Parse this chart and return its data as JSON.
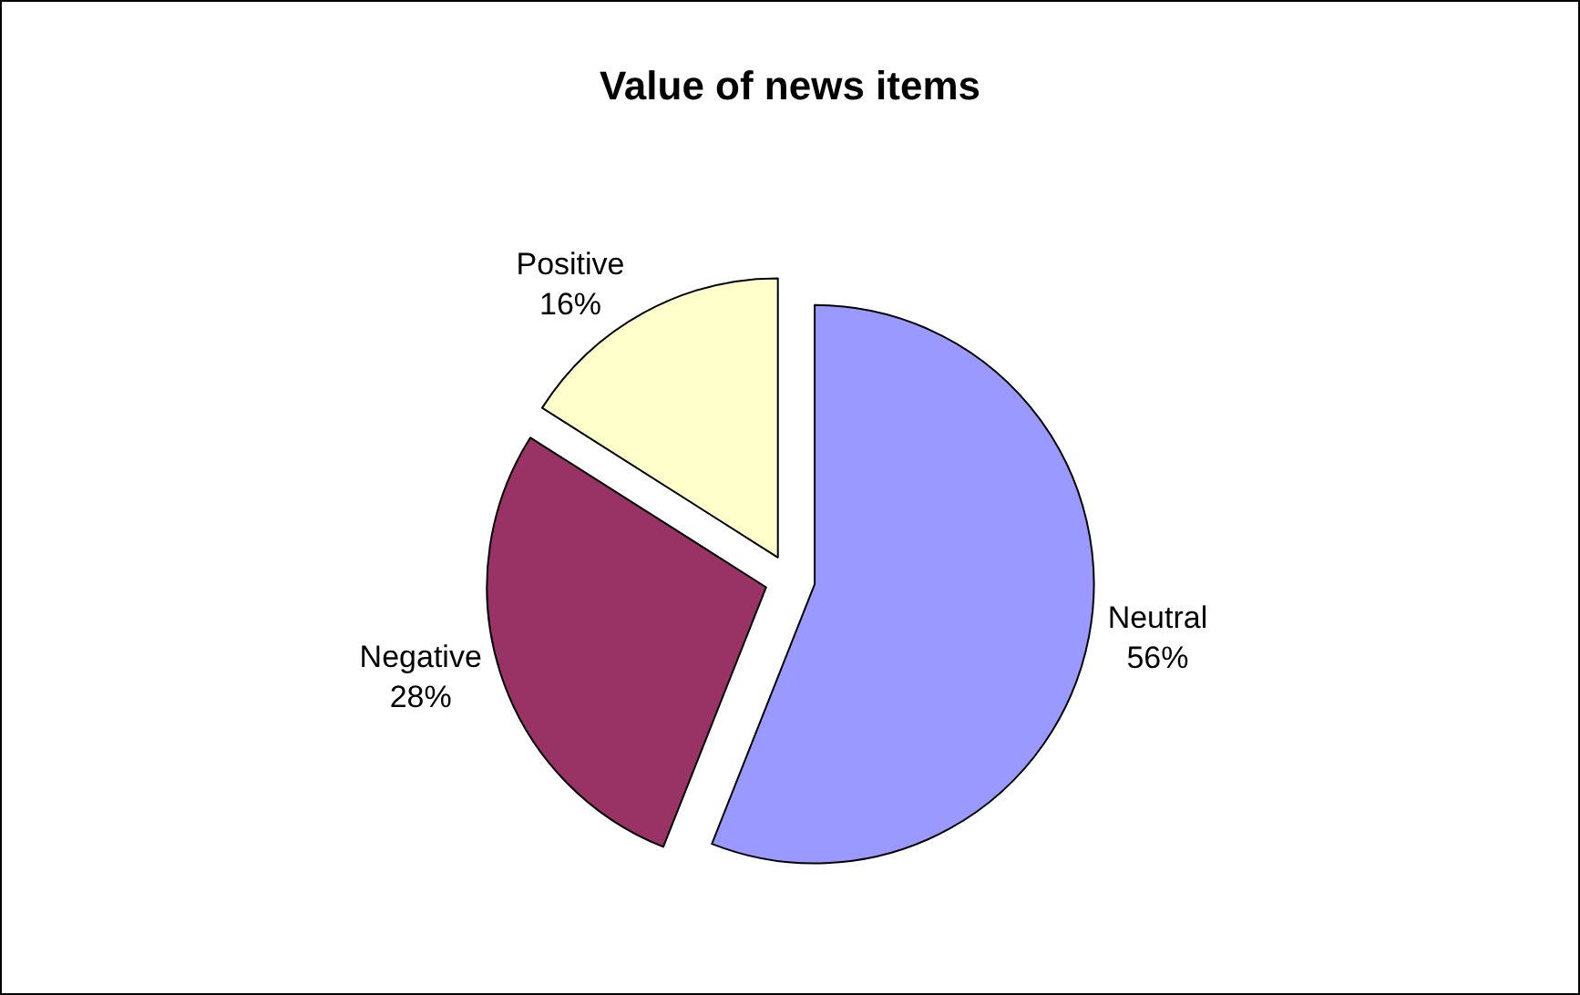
{
  "chart_data": {
    "type": "pie",
    "title": "Value of news items",
    "categories": [
      "Neutral",
      "Negative",
      "Positive"
    ],
    "values": [
      56,
      28,
      16
    ],
    "value_labels": [
      "56%",
      "28%",
      "16%"
    ],
    "colors": [
      "#9999ff",
      "#993366",
      "#ffffcc"
    ],
    "legend": false
  }
}
